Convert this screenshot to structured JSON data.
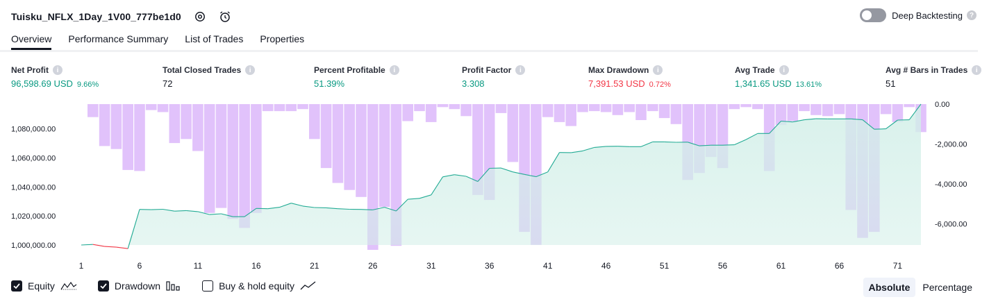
{
  "header": {
    "title": "Tuisku_NFLX_1Day_1V00_777be1d0",
    "deep_backtesting_label": "Deep Backtesting"
  },
  "tabs": [
    {
      "label": "Overview",
      "active": true
    },
    {
      "label": "Performance Summary",
      "active": false
    },
    {
      "label": "List of Trades",
      "active": false
    },
    {
      "label": "Properties",
      "active": false
    }
  ],
  "metrics": [
    {
      "label": "Net Profit",
      "value": "96,598.69 USD",
      "pct": "9.66%",
      "color": "green"
    },
    {
      "label": "Total Closed Trades",
      "value": "72",
      "pct": "",
      "color": "dark"
    },
    {
      "label": "Percent Profitable",
      "value": "51.39%",
      "pct": "",
      "color": "green"
    },
    {
      "label": "Profit Factor",
      "value": "3.308",
      "pct": "",
      "color": "green"
    },
    {
      "label": "Max Drawdown",
      "value": "7,391.53 USD",
      "pct": "0.72%",
      "color": "red"
    },
    {
      "label": "Avg Trade",
      "value": "1,341.65 USD",
      "pct": "13.61%",
      "color": "green"
    },
    {
      "label": "Avg # Bars in Trades",
      "value": "51",
      "pct": "",
      "color": "dark"
    }
  ],
  "legend": {
    "equity_label": "Equity",
    "equity_checked": true,
    "drawdown_label": "Drawdown",
    "drawdown_checked": true,
    "buyhold_label": "Buy & hold equity",
    "buyhold_checked": false
  },
  "modes": {
    "absolute": "Absolute",
    "percentage": "Percentage",
    "active": "absolute"
  },
  "colors": {
    "equity_line": "#22ab94",
    "equity_negative_line": "#f23645",
    "equity_fill": "#d2efe8",
    "drawdown_bar": "#e1c2fb"
  },
  "chart_data": {
    "type": "area",
    "x": [
      1,
      2,
      3,
      4,
      5,
      6,
      7,
      8,
      9,
      10,
      11,
      12,
      13,
      14,
      15,
      16,
      17,
      18,
      19,
      20,
      21,
      22,
      23,
      24,
      25,
      26,
      27,
      28,
      29,
      30,
      31,
      32,
      33,
      34,
      35,
      36,
      37,
      38,
      39,
      40,
      41,
      42,
      43,
      44,
      45,
      46,
      47,
      48,
      49,
      50,
      51,
      52,
      53,
      54,
      55,
      56,
      57,
      58,
      59,
      60,
      61,
      62,
      63,
      64,
      65,
      66,
      67,
      68,
      69,
      70,
      71,
      72,
      73
    ],
    "x_ticks": [
      1,
      6,
      11,
      16,
      21,
      26,
      31,
      36,
      41,
      46,
      51,
      56,
      61,
      66,
      71
    ],
    "series": [
      {
        "name": "Equity",
        "axis": "left",
        "values": [
          1000000,
          1000400,
          999000,
          998500,
          997500,
          1024500,
          1024300,
          1024600,
          1023300,
          1023700,
          1023000,
          1021000,
          1021500,
          1019500,
          1019500,
          1025200,
          1025000,
          1026000,
          1028800,
          1026800,
          1025800,
          1025600,
          1025000,
          1024600,
          1024500,
          1024200,
          1026000,
          1023400,
          1031500,
          1032100,
          1034500,
          1046900,
          1048400,
          1047300,
          1043700,
          1052800,
          1053000,
          1050300,
          1048600,
          1047000,
          1050300,
          1063700,
          1063600,
          1064800,
          1067200,
          1067900,
          1068000,
          1067700,
          1067700,
          1071000,
          1071000,
          1070700,
          1070800,
          1068300,
          1068700,
          1068700,
          1069000,
          1072600,
          1076800,
          1076800,
          1085300,
          1084700,
          1086200,
          1086900,
          1086800,
          1086800,
          1086800,
          1086200,
          1079700,
          1080000,
          1086000,
          1086200,
          1097000
        ]
      },
      {
        "name": "Drawdown",
        "axis": "right",
        "values": [
          0,
          -650,
          -2100,
          -2250,
          -3300,
          -3350,
          -300,
          -400,
          -1950,
          -1750,
          -2350,
          -5450,
          -5200,
          -5750,
          -6200,
          -5450,
          -350,
          -350,
          -350,
          -250,
          -1750,
          -3200,
          -3950,
          -4300,
          -4650,
          -7300,
          -5150,
          -7100,
          -850,
          -350,
          -900,
          -150,
          -250,
          -600,
          -4550,
          -4800,
          -450,
          -2900,
          -6400,
          -7050,
          -650,
          -900,
          -1100,
          -400,
          -350,
          -400,
          -550,
          -400,
          -800,
          -350,
          -700,
          -1000,
          -3800,
          -3450,
          -2650,
          -3200,
          -250,
          -150,
          -250,
          -3350,
          -1050,
          -850,
          -350,
          -550,
          -600,
          -500,
          -5300,
          -6700,
          -6400,
          -500,
          -900,
          -150,
          -1400
        ]
      }
    ],
    "left_axis": {
      "ticks": [
        "1,000,000.00",
        "1,020,000.00",
        "1,040,000.00",
        "1,060,000.00",
        "1,080,000.00"
      ],
      "ylim": [
        1000000,
        1097000
      ]
    },
    "right_axis": {
      "ticks": [
        "0.00",
        "-2,000.00",
        "-4,000.00",
        "-6,000.00"
      ],
      "ylim": [
        -7300,
        0
      ]
    }
  }
}
